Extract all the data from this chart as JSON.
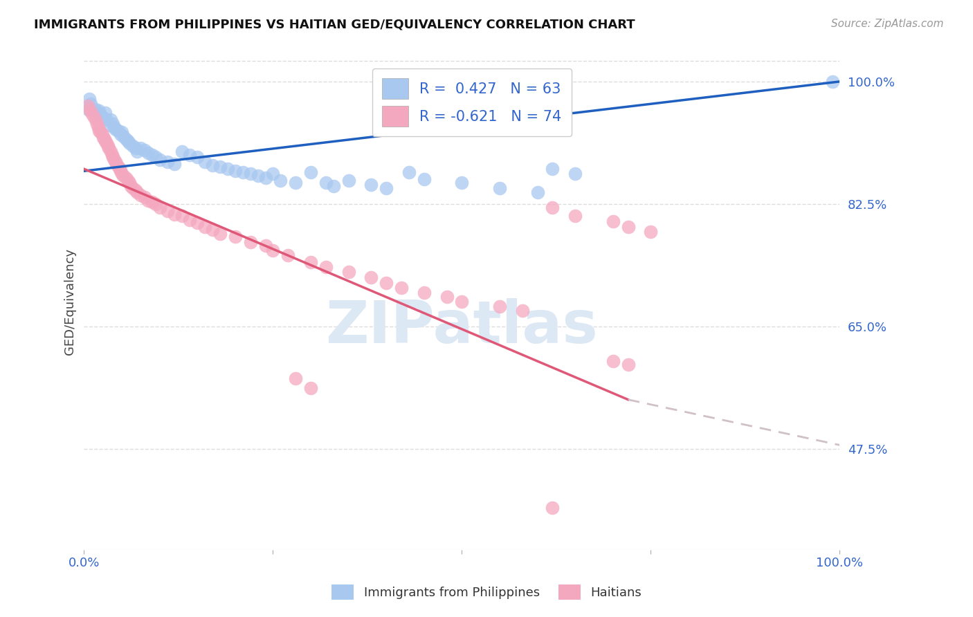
{
  "title": "IMMIGRANTS FROM PHILIPPINES VS HAITIAN GED/EQUIVALENCY CORRELATION CHART",
  "source": "Source: ZipAtlas.com",
  "ylabel": "GED/Equivalency",
  "ytick_labels": [
    "100.0%",
    "82.5%",
    "65.0%",
    "47.5%"
  ],
  "ytick_values": [
    1.0,
    0.825,
    0.65,
    0.475
  ],
  "watermark": "ZIPatlas",
  "blue_color": "#A8C8F0",
  "pink_color": "#F4A8C0",
  "blue_line_color": "#1E5FBF",
  "pink_line_color": "#E05878",
  "dashed_color": "#D0C0C8",
  "xmin": 0.0,
  "xmax": 1.0,
  "ymin": 0.33,
  "ymax": 1.04,
  "blue_line": [
    [
      0.0,
      0.872
    ],
    [
      1.0,
      1.0
    ]
  ],
  "pink_line_solid": [
    [
      0.0,
      0.875
    ],
    [
      0.72,
      0.545
    ]
  ],
  "pink_line_dashed": [
    [
      0.72,
      0.545
    ],
    [
      1.0,
      0.48
    ]
  ],
  "blue_scatter": [
    [
      0.005,
      0.96
    ],
    [
      0.007,
      0.975
    ],
    [
      0.009,
      0.968
    ],
    [
      0.015,
      0.96
    ],
    [
      0.018,
      0.955
    ],
    [
      0.02,
      0.958
    ],
    [
      0.022,
      0.952
    ],
    [
      0.025,
      0.948
    ],
    [
      0.028,
      0.955
    ],
    [
      0.03,
      0.945
    ],
    [
      0.032,
      0.938
    ],
    [
      0.035,
      0.945
    ],
    [
      0.038,
      0.94
    ],
    [
      0.04,
      0.935
    ],
    [
      0.042,
      0.932
    ],
    [
      0.045,
      0.93
    ],
    [
      0.048,
      0.925
    ],
    [
      0.05,
      0.928
    ],
    [
      0.052,
      0.922
    ],
    [
      0.055,
      0.918
    ],
    [
      0.058,
      0.915
    ],
    [
      0.06,
      0.912
    ],
    [
      0.065,
      0.908
    ],
    [
      0.068,
      0.905
    ],
    [
      0.07,
      0.9
    ],
    [
      0.075,
      0.905
    ],
    [
      0.08,
      0.902
    ],
    [
      0.085,
      0.898
    ],
    [
      0.09,
      0.895
    ],
    [
      0.095,
      0.892
    ],
    [
      0.1,
      0.888
    ],
    [
      0.11,
      0.885
    ],
    [
      0.12,
      0.882
    ],
    [
      0.13,
      0.9
    ],
    [
      0.14,
      0.895
    ],
    [
      0.15,
      0.892
    ],
    [
      0.16,
      0.885
    ],
    [
      0.17,
      0.88
    ],
    [
      0.18,
      0.878
    ],
    [
      0.19,
      0.875
    ],
    [
      0.2,
      0.872
    ],
    [
      0.21,
      0.87
    ],
    [
      0.22,
      0.868
    ],
    [
      0.23,
      0.865
    ],
    [
      0.24,
      0.862
    ],
    [
      0.25,
      0.868
    ],
    [
      0.26,
      0.858
    ],
    [
      0.28,
      0.855
    ],
    [
      0.3,
      0.87
    ],
    [
      0.32,
      0.855
    ],
    [
      0.33,
      0.85
    ],
    [
      0.35,
      0.858
    ],
    [
      0.38,
      0.852
    ],
    [
      0.4,
      0.848
    ],
    [
      0.43,
      0.87
    ],
    [
      0.45,
      0.86
    ],
    [
      0.5,
      0.855
    ],
    [
      0.55,
      0.848
    ],
    [
      0.6,
      0.842
    ],
    [
      0.62,
      0.875
    ],
    [
      0.65,
      0.868
    ],
    [
      0.99,
      1.0
    ]
  ],
  "pink_scatter": [
    [
      0.005,
      0.965
    ],
    [
      0.007,
      0.96
    ],
    [
      0.01,
      0.955
    ],
    [
      0.012,
      0.95
    ],
    [
      0.015,
      0.945
    ],
    [
      0.017,
      0.94
    ],
    [
      0.019,
      0.935
    ],
    [
      0.02,
      0.93
    ],
    [
      0.022,
      0.928
    ],
    [
      0.024,
      0.925
    ],
    [
      0.025,
      0.92
    ],
    [
      0.027,
      0.918
    ],
    [
      0.028,
      0.915
    ],
    [
      0.03,
      0.912
    ],
    [
      0.032,
      0.908
    ],
    [
      0.033,
      0.905
    ],
    [
      0.035,
      0.9
    ],
    [
      0.037,
      0.895
    ],
    [
      0.038,
      0.892
    ],
    [
      0.04,
      0.888
    ],
    [
      0.042,
      0.885
    ],
    [
      0.043,
      0.882
    ],
    [
      0.045,
      0.878
    ],
    [
      0.047,
      0.875
    ],
    [
      0.048,
      0.872
    ],
    [
      0.05,
      0.868
    ],
    [
      0.052,
      0.865
    ],
    [
      0.055,
      0.862
    ],
    [
      0.058,
      0.858
    ],
    [
      0.06,
      0.855
    ],
    [
      0.062,
      0.85
    ],
    [
      0.065,
      0.848
    ],
    [
      0.068,
      0.845
    ],
    [
      0.07,
      0.842
    ],
    [
      0.075,
      0.838
    ],
    [
      0.08,
      0.835
    ],
    [
      0.085,
      0.83
    ],
    [
      0.09,
      0.828
    ],
    [
      0.095,
      0.825
    ],
    [
      0.1,
      0.82
    ],
    [
      0.11,
      0.815
    ],
    [
      0.12,
      0.81
    ],
    [
      0.13,
      0.808
    ],
    [
      0.14,
      0.802
    ],
    [
      0.15,
      0.798
    ],
    [
      0.16,
      0.792
    ],
    [
      0.17,
      0.788
    ],
    [
      0.18,
      0.782
    ],
    [
      0.2,
      0.778
    ],
    [
      0.22,
      0.77
    ],
    [
      0.24,
      0.765
    ],
    [
      0.25,
      0.758
    ],
    [
      0.27,
      0.752
    ],
    [
      0.3,
      0.742
    ],
    [
      0.32,
      0.735
    ],
    [
      0.35,
      0.728
    ],
    [
      0.38,
      0.72
    ],
    [
      0.4,
      0.712
    ],
    [
      0.42,
      0.705
    ],
    [
      0.45,
      0.698
    ],
    [
      0.48,
      0.692
    ],
    [
      0.5,
      0.685
    ],
    [
      0.55,
      0.678
    ],
    [
      0.58,
      0.672
    ],
    [
      0.62,
      0.82
    ],
    [
      0.65,
      0.808
    ],
    [
      0.7,
      0.8
    ],
    [
      0.72,
      0.792
    ],
    [
      0.75,
      0.785
    ],
    [
      0.28,
      0.575
    ],
    [
      0.3,
      0.562
    ],
    [
      0.62,
      0.39
    ],
    [
      0.7,
      0.6
    ],
    [
      0.72,
      0.595
    ]
  ]
}
